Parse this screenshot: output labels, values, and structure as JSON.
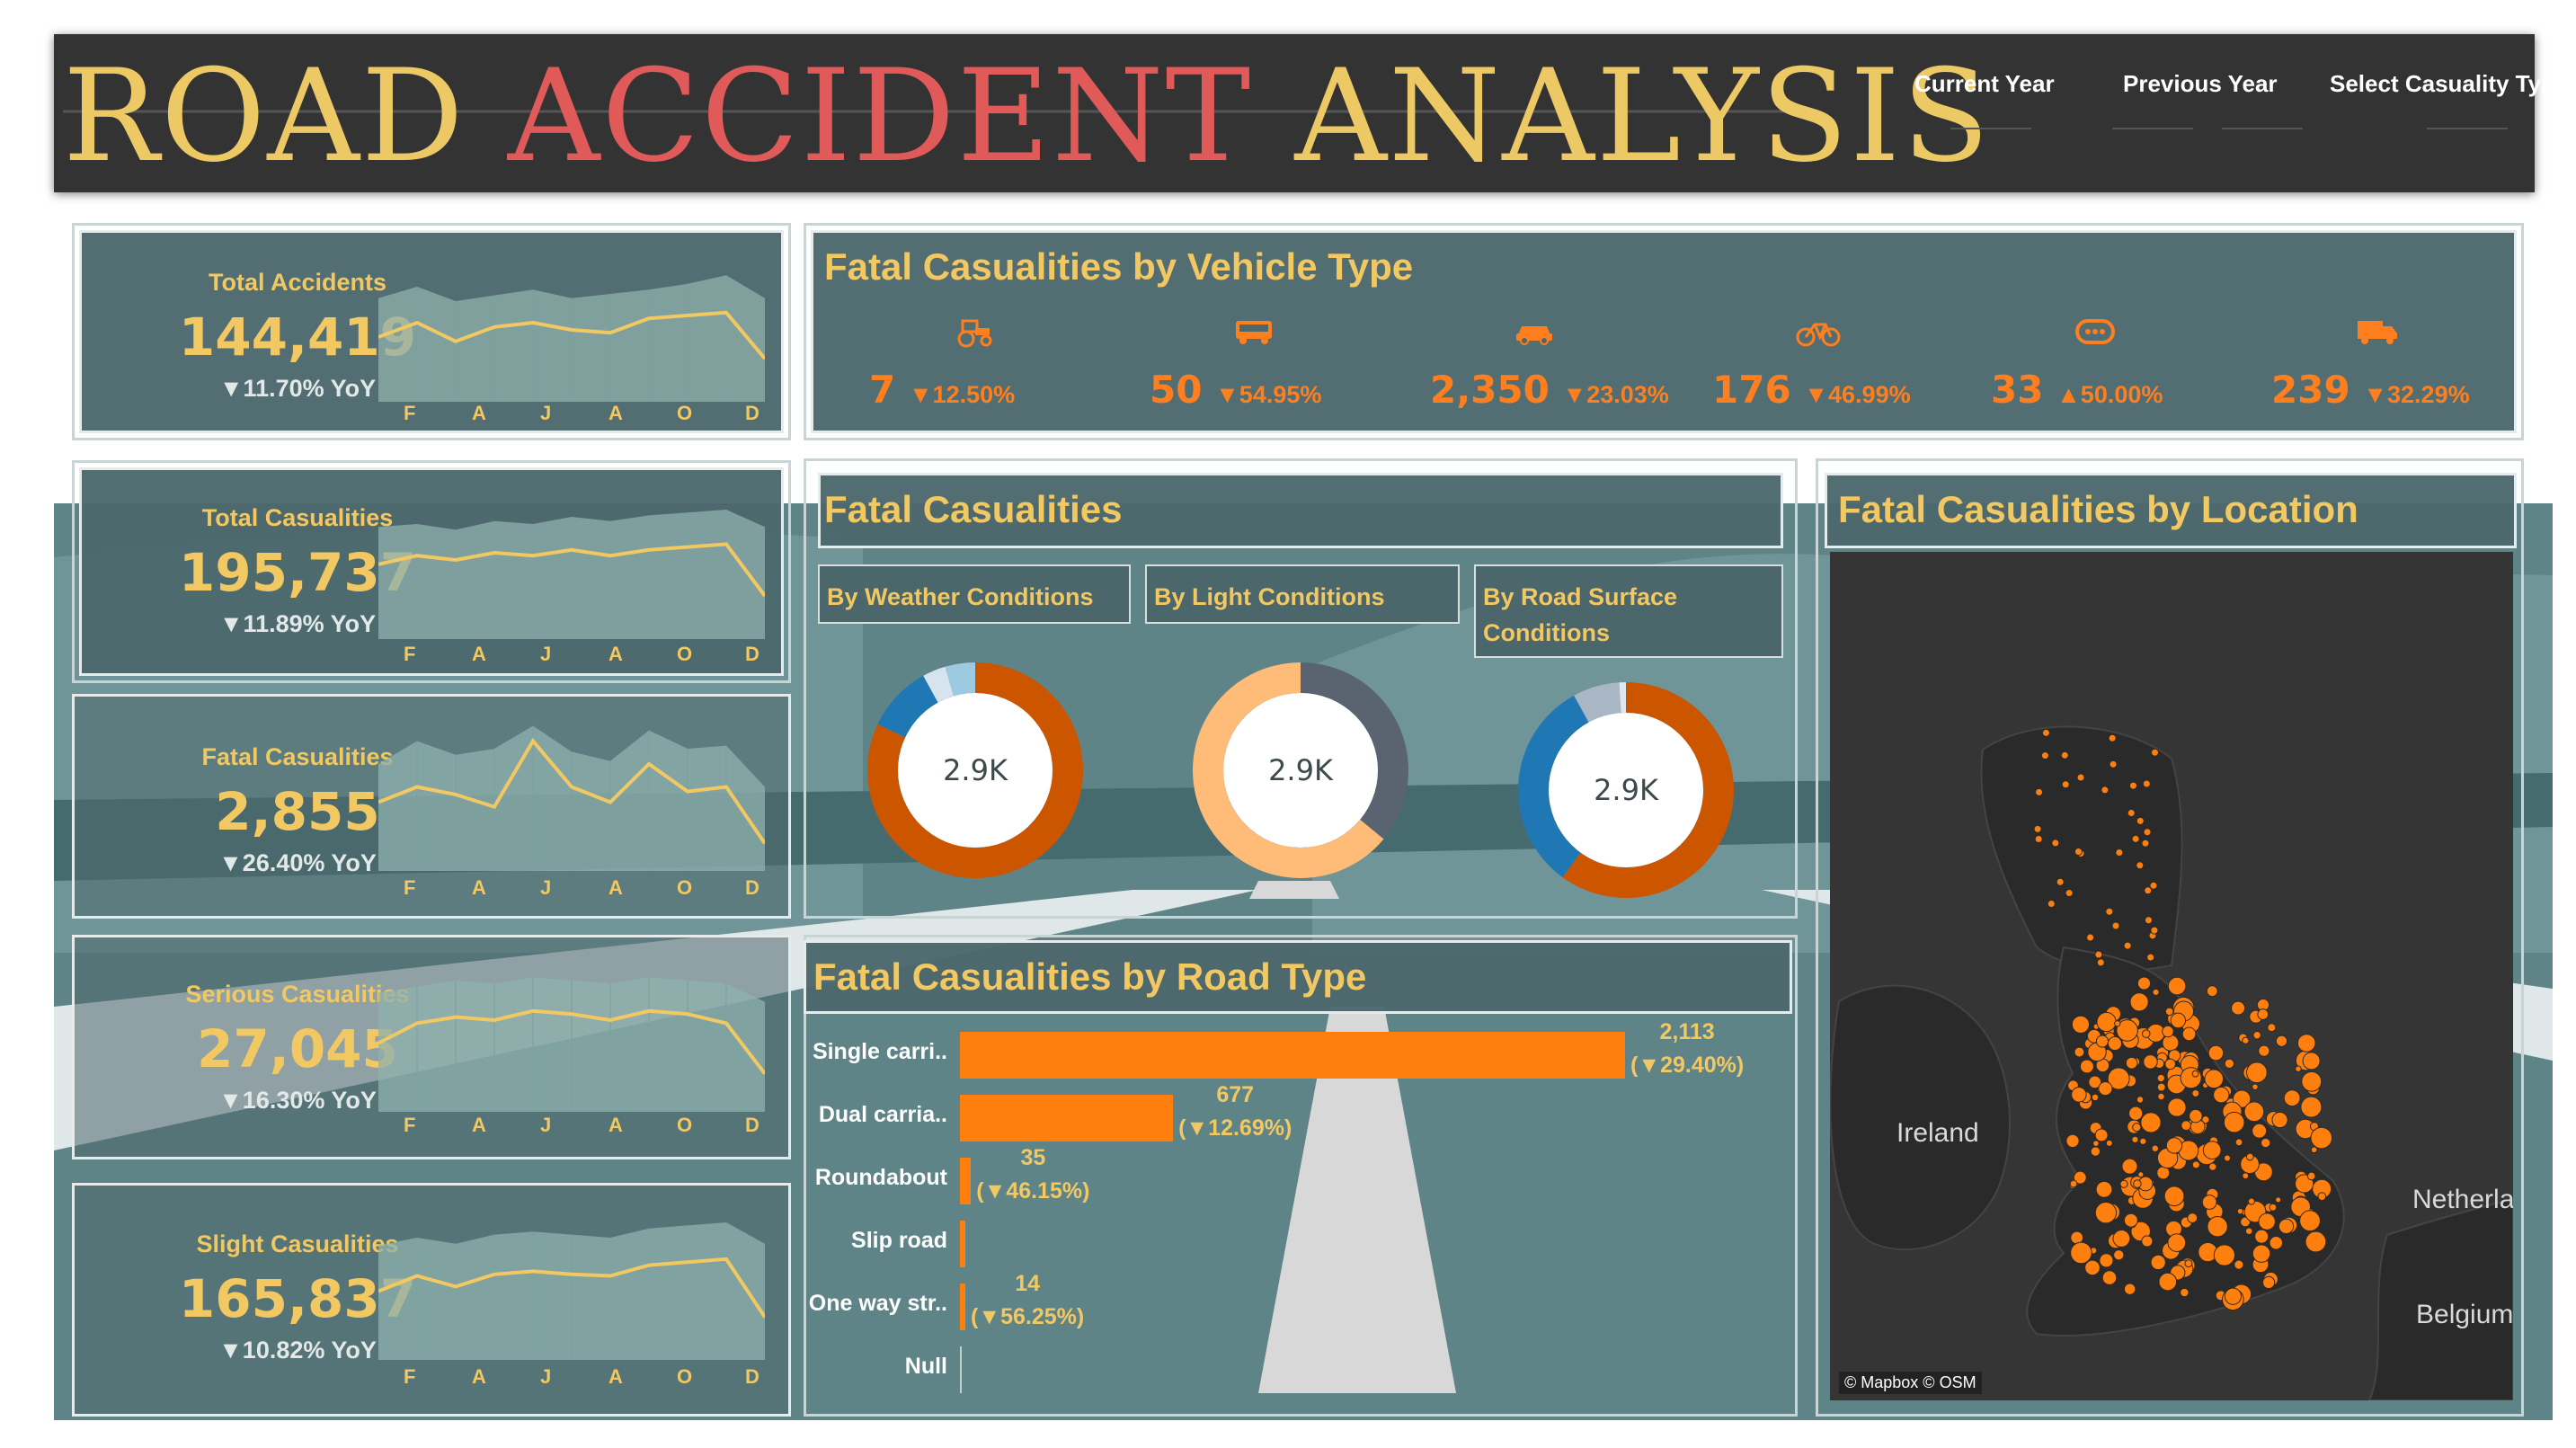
{
  "header": {
    "title_word1": "ROAD",
    "title_word2": "ACCIDENT",
    "title_word3": "ANALYSIS",
    "filters": [
      "Current Year",
      "Previous Year",
      "Select Casuality Type"
    ]
  },
  "months": [
    "F",
    "A",
    "J",
    "A",
    "O",
    "D"
  ],
  "kpis": [
    {
      "label": "Total Accidents",
      "value": "144,419",
      "yoy": "▼11.70% YoY",
      "trend": [
        0.45,
        0.55,
        0.42,
        0.52,
        0.55,
        0.5,
        0.48,
        0.58,
        0.6,
        0.62,
        0.3
      ],
      "area": [
        0.72,
        0.8,
        0.7,
        0.74,
        0.78,
        0.72,
        0.75,
        0.78,
        0.82,
        0.88,
        0.72
      ]
    },
    {
      "label": "Total Casualities",
      "value": "195,737",
      "yoy": "▼11.89% YoY",
      "trend": [
        0.52,
        0.58,
        0.55,
        0.6,
        0.58,
        0.62,
        0.58,
        0.62,
        0.64,
        0.66,
        0.3
      ],
      "area": [
        0.78,
        0.8,
        0.76,
        0.82,
        0.8,
        0.85,
        0.82,
        0.86,
        0.88,
        0.9,
        0.78
      ]
    },
    {
      "label": "Fatal Casualities",
      "value": "2,855",
      "yoy": "▼26.40% YoY",
      "trend": [
        0.45,
        0.55,
        0.5,
        0.42,
        0.85,
        0.55,
        0.45,
        0.7,
        0.52,
        0.55,
        0.18
      ],
      "area": [
        0.7,
        0.85,
        0.76,
        0.8,
        0.95,
        0.78,
        0.72,
        0.92,
        0.8,
        0.82,
        0.55
      ]
    },
    {
      "label": "Serious Casualities",
      "value": "27,045",
      "yoy": "▼16.30% YoY",
      "trend": [
        0.45,
        0.58,
        0.62,
        0.6,
        0.66,
        0.64,
        0.6,
        0.66,
        0.64,
        0.58,
        0.25
      ],
      "area": [
        0.78,
        0.82,
        0.86,
        0.84,
        0.88,
        0.86,
        0.84,
        0.88,
        0.86,
        0.84,
        0.72
      ]
    },
    {
      "label": "Slight Casualities",
      "value": "165,837",
      "yoy": "▼10.82% YoY",
      "trend": [
        0.45,
        0.55,
        0.48,
        0.56,
        0.58,
        0.56,
        0.55,
        0.62,
        0.64,
        0.66,
        0.28
      ],
      "area": [
        0.75,
        0.8,
        0.76,
        0.82,
        0.84,
        0.82,
        0.8,
        0.86,
        0.88,
        0.9,
        0.76
      ]
    }
  ],
  "vehicle": {
    "title": "Fatal Casualities by Vehicle Type",
    "items": [
      {
        "icon": "tractor-icon",
        "value": "7",
        "change": "▼12.50%"
      },
      {
        "icon": "bus-icon",
        "value": "50",
        "change": "▼54.95%"
      },
      {
        "icon": "car-icon",
        "value": "2,350",
        "change": "▼23.03%"
      },
      {
        "icon": "bicycle-icon",
        "value": "176",
        "change": "▼46.99%"
      },
      {
        "icon": "other-vehicle-icon",
        "value": "33",
        "change": "▲50.00%"
      },
      {
        "icon": "van-icon",
        "value": "239",
        "change": "▼32.29%"
      }
    ]
  },
  "fatal": {
    "title": "Fatal Casualities",
    "tabs": [
      "By Weather Conditions",
      "By Light Conditions",
      "By Road Surface Conditions"
    ],
    "donuts": [
      {
        "center": "2.9K",
        "slices": [
          {
            "value": 0.82,
            "color": "#cc5500"
          },
          {
            "value": 0.1,
            "color": "#1f77b4"
          },
          {
            "value": 0.035,
            "color": "#d6e4ef"
          },
          {
            "value": 0.045,
            "color": "#9ecae1"
          }
        ]
      },
      {
        "center": "2.9K",
        "slices": [
          {
            "value": 0.36,
            "color": "#5a6370"
          },
          {
            "value": 0.64,
            "color": "#ffbb78"
          }
        ]
      },
      {
        "center": "2.9K",
        "slices": [
          {
            "value": 0.6,
            "color": "#cc5500"
          },
          {
            "value": 0.32,
            "color": "#1f77b4"
          },
          {
            "value": 0.07,
            "color": "#a9b6c4"
          },
          {
            "value": 0.01,
            "color": "#dfe6ee"
          }
        ]
      }
    ]
  },
  "road": {
    "title": "Fatal Casualities by Road Type",
    "bars": [
      {
        "label": "Single carri..",
        "value": 2113,
        "text1": "2,113",
        "text2": "(▼29.40%)"
      },
      {
        "label": "Dual carria..",
        "value": 677,
        "text1": "677",
        "text2": "(▼12.69%)"
      },
      {
        "label": "Roundabout",
        "value": 35,
        "text1": "35",
        "text2": "(▼46.15%)"
      },
      {
        "label": "Slip road",
        "value": 16,
        "text1": "",
        "text2": ""
      },
      {
        "label": "One way str..",
        "value": 14,
        "text1": "14",
        "text2": "(▼56.25%)"
      },
      {
        "label": "Null",
        "value": 0,
        "text1": "",
        "text2": ""
      }
    ],
    "max": 2113
  },
  "location": {
    "title": "Fatal Casualities by Location",
    "labels": {
      "ireland": "Ireland",
      "netherlands": "Netherla",
      "belgium": "Belgium"
    },
    "credit": "© Mapbox © OSM"
  },
  "colors": {
    "gold": "#f2c863",
    "orange": "#ff7f1f",
    "panel": "#4c686c",
    "red": "#e05a5a"
  }
}
